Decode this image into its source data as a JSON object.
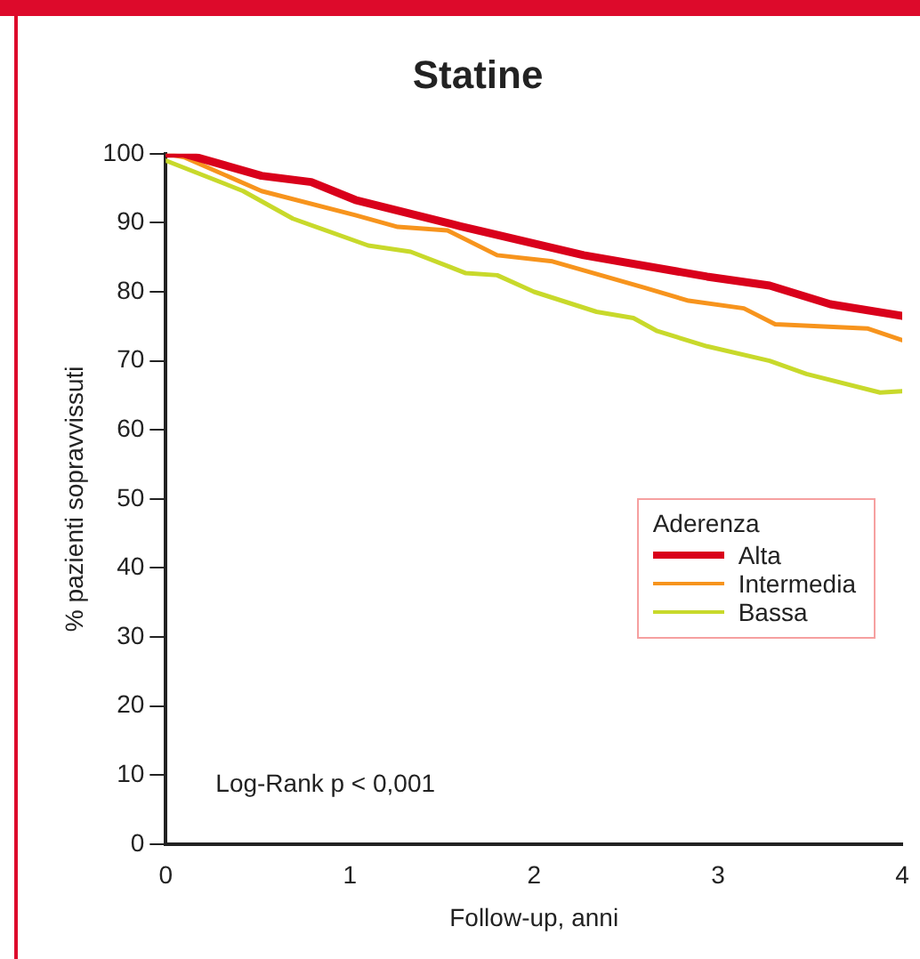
{
  "chart_data": {
    "type": "line",
    "title": "Statine",
    "xlabel": "Follow-up, anni",
    "ylabel": "% pazienti sopravvissuti",
    "legend_title": "Aderenza",
    "xlim": [
      0,
      4
    ],
    "xticks": [
      0,
      1,
      2,
      3,
      4
    ],
    "ylim": [
      0,
      100
    ],
    "yticks": [
      0,
      10,
      20,
      30,
      40,
      50,
      60,
      70,
      80,
      90,
      100
    ],
    "grid": false,
    "legend": "right",
    "marker": "none",
    "line_style": "solid",
    "annotations": [
      "Log-Rank p < 0,001"
    ],
    "series": [
      {
        "name": "Alta",
        "color": "#d9001b",
        "x": [
          0,
          0.1,
          0.52,
          0.79,
          1.03,
          1.6,
          2.27,
          2.94,
          3.28,
          3.61,
          4
        ],
        "values": [
          100,
          100,
          96.8,
          95.9,
          93.3,
          89.5,
          85.3,
          82.2,
          80.9,
          78.2,
          76.5
        ]
      },
      {
        "name": "Intermedia",
        "color": "#f7941d",
        "x": [
          0,
          0.1,
          0.52,
          1.03,
          1.26,
          1.53,
          1.8,
          2.1,
          2.6,
          2.84,
          3.14,
          3.31,
          3.81,
          4
        ],
        "values": [
          100,
          99.5,
          94.6,
          91.1,
          89.4,
          88.9,
          85.3,
          84.4,
          80.6,
          78.7,
          77.6,
          75.3,
          74.7,
          73
        ]
      },
      {
        "name": "Bassa",
        "color": "#c8d92b",
        "x": [
          0,
          0.42,
          0.69,
          1.1,
          1.33,
          1.63,
          1.8,
          2.0,
          2.34,
          2.54,
          2.67,
          2.94,
          3.28,
          3.48,
          3.88,
          4
        ],
        "values": [
          99,
          94.6,
          90.6,
          86.7,
          85.8,
          82.7,
          82.4,
          80,
          77.1,
          76.2,
          74.3,
          72.1,
          70,
          68.1,
          65.4,
          65.6
        ]
      }
    ]
  }
}
